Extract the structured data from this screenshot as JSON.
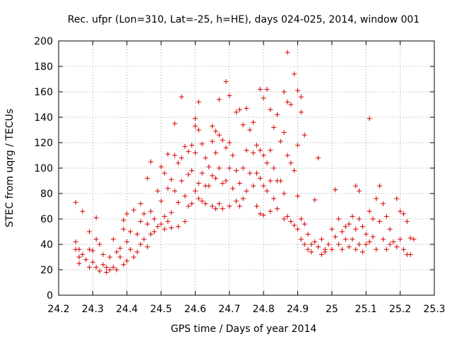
{
  "chart_data": {
    "type": "scatter",
    "title": "Rec. ufpr (Lon=310, Lat=-25, h=HE), days 024-025, 2014, window 001",
    "xlabel": "GPS time / Days of year 2014",
    "ylabel": "STEC from uqrg / TECUs",
    "xlim": [
      24.2,
      25.3
    ],
    "ylim": [
      0,
      200
    ],
    "xticks": [
      "24.2",
      "24.3",
      "24.4",
      "24.5",
      "24.6",
      "24.7",
      "24.8",
      "24.9",
      "25",
      "25.1",
      "25.2",
      "25.3"
    ],
    "yticks": [
      "0",
      "20",
      "40",
      "60",
      "80",
      "100",
      "120",
      "140",
      "160",
      "180",
      "200"
    ],
    "grid": true,
    "marker": "plus",
    "color": "#d40000",
    "series": [
      {
        "points": [
          [
            24.25,
            73
          ],
          [
            24.25,
            42
          ],
          [
            24.25,
            36
          ],
          [
            24.26,
            36
          ],
          [
            24.26,
            30
          ],
          [
            24.26,
            25
          ],
          [
            24.27,
            66
          ],
          [
            24.27,
            32
          ],
          [
            24.28,
            28
          ],
          [
            24.29,
            50
          ],
          [
            24.29,
            36
          ],
          [
            24.29,
            22
          ],
          [
            24.3,
            35
          ],
          [
            24.3,
            26
          ],
          [
            24.31,
            61
          ],
          [
            24.31,
            44
          ],
          [
            24.31,
            22
          ],
          [
            24.32,
            40
          ],
          [
            24.32,
            19
          ],
          [
            24.33,
            32
          ],
          [
            24.33,
            24
          ],
          [
            24.34,
            22
          ],
          [
            24.34,
            18
          ],
          [
            24.35,
            30
          ],
          [
            24.35,
            20
          ],
          [
            24.36,
            44
          ],
          [
            24.36,
            22
          ],
          [
            24.37,
            34
          ],
          [
            24.37,
            20
          ],
          [
            24.38,
            37
          ],
          [
            24.38,
            30
          ],
          [
            24.39,
            52
          ],
          [
            24.39,
            24
          ],
          [
            24.39,
            59
          ],
          [
            24.4,
            64
          ],
          [
            24.4,
            42
          ],
          [
            24.4,
            27
          ],
          [
            24.41,
            50
          ],
          [
            24.41,
            36
          ],
          [
            24.42,
            67
          ],
          [
            24.42,
            30
          ],
          [
            24.43,
            48
          ],
          [
            24.43,
            34
          ],
          [
            24.44,
            72
          ],
          [
            24.44,
            58
          ],
          [
            24.44,
            40
          ],
          [
            24.45,
            64
          ],
          [
            24.45,
            44
          ],
          [
            24.46,
            92
          ],
          [
            24.46,
            56
          ],
          [
            24.46,
            38
          ],
          [
            24.47,
            105
          ],
          [
            24.47,
            66
          ],
          [
            24.47,
            48
          ],
          [
            24.48,
            60
          ],
          [
            24.48,
            50
          ],
          [
            24.49,
            82
          ],
          [
            24.49,
            54
          ],
          [
            24.5,
            101
          ],
          [
            24.5,
            74
          ],
          [
            24.5,
            56
          ],
          [
            24.51,
            96
          ],
          [
            24.51,
            62
          ],
          [
            24.51,
            52
          ],
          [
            24.52,
            111
          ],
          [
            24.52,
            84
          ],
          [
            24.52,
            58
          ],
          [
            24.53,
            91
          ],
          [
            24.53,
            65
          ],
          [
            24.53,
            53
          ],
          [
            24.54,
            135
          ],
          [
            24.54,
            110
          ],
          [
            24.54,
            82
          ],
          [
            24.55,
            104
          ],
          [
            24.55,
            73
          ],
          [
            24.55,
            54
          ],
          [
            24.56,
            156
          ],
          [
            24.56,
            108
          ],
          [
            24.56,
            90
          ],
          [
            24.57,
            117
          ],
          [
            24.57,
            78
          ],
          [
            24.57,
            58
          ],
          [
            24.58,
            113
          ],
          [
            24.58,
            95
          ],
          [
            24.58,
            70
          ],
          [
            24.59,
            118
          ],
          [
            24.59,
            98
          ],
          [
            24.59,
            72
          ],
          [
            24.6,
            139
          ],
          [
            24.6,
            133
          ],
          [
            24.6,
            112
          ],
          [
            24.6,
            82
          ],
          [
            24.61,
            152
          ],
          [
            24.61,
            130
          ],
          [
            24.61,
            88
          ],
          [
            24.61,
            76
          ],
          [
            24.62,
            119
          ],
          [
            24.62,
            96
          ],
          [
            24.62,
            74
          ],
          [
            24.63,
            108
          ],
          [
            24.63,
            86
          ],
          [
            24.63,
            72
          ],
          [
            24.64,
            101
          ],
          [
            24.64,
            86
          ],
          [
            24.65,
            133
          ],
          [
            24.65,
            121
          ],
          [
            24.65,
            94
          ],
          [
            24.65,
            70
          ],
          [
            24.66,
            129
          ],
          [
            24.66,
            112
          ],
          [
            24.66,
            92
          ],
          [
            24.66,
            68
          ],
          [
            24.67,
            154
          ],
          [
            24.67,
            126
          ],
          [
            24.67,
            100
          ],
          [
            24.67,
            72
          ],
          [
            24.68,
            122
          ],
          [
            24.68,
            88
          ],
          [
            24.68,
            68
          ],
          [
            24.69,
            168
          ],
          [
            24.69,
            116
          ],
          [
            24.69,
            90
          ],
          [
            24.7,
            157
          ],
          [
            24.7,
            120
          ],
          [
            24.7,
            100
          ],
          [
            24.7,
            70
          ],
          [
            24.71,
            110
          ],
          [
            24.71,
            84
          ],
          [
            24.72,
            144
          ],
          [
            24.72,
            98
          ],
          [
            24.72,
            74
          ],
          [
            24.73,
            146
          ],
          [
            24.73,
            88
          ],
          [
            24.73,
            70
          ],
          [
            24.74,
            134
          ],
          [
            24.74,
            100
          ],
          [
            24.74,
            76
          ],
          [
            24.75,
            147
          ],
          [
            24.75,
            114
          ],
          [
            24.75,
            82
          ],
          [
            24.76,
            130
          ],
          [
            24.76,
            96
          ],
          [
            24.77,
            136
          ],
          [
            24.77,
            112
          ],
          [
            24.77,
            86
          ],
          [
            24.78,
            118
          ],
          [
            24.78,
            96
          ],
          [
            24.78,
            70
          ],
          [
            24.79,
            162
          ],
          [
            24.79,
            114
          ],
          [
            24.79,
            92
          ],
          [
            24.79,
            64
          ],
          [
            24.8,
            155
          ],
          [
            24.8,
            110
          ],
          [
            24.8,
            86
          ],
          [
            24.8,
            63
          ],
          [
            24.81,
            162
          ],
          [
            24.81,
            104
          ],
          [
            24.81,
            82
          ],
          [
            24.82,
            146
          ],
          [
            24.82,
            114
          ],
          [
            24.82,
            90
          ],
          [
            24.82,
            66
          ],
          [
            24.83,
            132
          ],
          [
            24.83,
            100
          ],
          [
            24.83,
            76
          ],
          [
            24.84,
            142
          ],
          [
            24.84,
            90
          ],
          [
            24.84,
            68
          ],
          [
            24.85,
            121
          ],
          [
            24.85,
            90
          ],
          [
            24.86,
            160
          ],
          [
            24.86,
            128
          ],
          [
            24.86,
            80
          ],
          [
            24.86,
            60
          ],
          [
            24.87,
            191
          ],
          [
            24.87,
            152
          ],
          [
            24.87,
            110
          ],
          [
            24.87,
            62
          ],
          [
            24.88,
            150
          ],
          [
            24.88,
            104
          ],
          [
            24.88,
            58
          ],
          [
            24.89,
            174
          ],
          [
            24.89,
            98
          ],
          [
            24.89,
            55
          ],
          [
            24.9,
            161
          ],
          [
            24.9,
            118
          ],
          [
            24.9,
            78
          ],
          [
            24.9,
            52
          ],
          [
            24.91,
            156
          ],
          [
            24.91,
            144
          ],
          [
            24.91,
            60
          ],
          [
            24.91,
            44
          ],
          [
            24.92,
            126
          ],
          [
            24.92,
            56
          ],
          [
            24.92,
            40
          ],
          [
            24.93,
            48
          ],
          [
            24.93,
            36
          ],
          [
            24.94,
            40
          ],
          [
            24.94,
            34
          ],
          [
            24.95,
            75
          ],
          [
            24.95,
            42
          ],
          [
            24.96,
            108
          ],
          [
            24.96,
            38
          ],
          [
            24.97,
            44
          ],
          [
            24.97,
            32
          ],
          [
            24.98,
            36
          ],
          [
            24.98,
            34
          ],
          [
            24.99,
            40
          ],
          [
            25.0,
            52
          ],
          [
            25.0,
            36
          ],
          [
            25.01,
            83
          ],
          [
            25.01,
            46
          ],
          [
            25.02,
            60
          ],
          [
            25.02,
            40
          ],
          [
            25.03,
            50
          ],
          [
            25.03,
            36
          ],
          [
            25.04,
            54
          ],
          [
            25.04,
            44
          ],
          [
            25.05,
            56
          ],
          [
            25.05,
            38
          ],
          [
            25.06,
            62
          ],
          [
            25.06,
            44
          ],
          [
            25.07,
            86
          ],
          [
            25.07,
            52
          ],
          [
            25.07,
            36
          ],
          [
            25.08,
            82
          ],
          [
            25.08,
            60
          ],
          [
            25.08,
            40
          ],
          [
            25.09,
            54
          ],
          [
            25.09,
            34
          ],
          [
            25.1,
            48
          ],
          [
            25.1,
            40
          ],
          [
            25.11,
            139
          ],
          [
            25.11,
            66
          ],
          [
            25.11,
            42
          ],
          [
            25.12,
            60
          ],
          [
            25.12,
            46
          ],
          [
            25.13,
            76
          ],
          [
            25.13,
            36
          ],
          [
            25.14,
            86
          ],
          [
            25.14,
            58
          ],
          [
            25.15,
            72
          ],
          [
            25.15,
            44
          ],
          [
            25.16,
            62
          ],
          [
            25.16,
            36
          ],
          [
            25.17,
            52
          ],
          [
            25.17,
            40
          ],
          [
            25.18,
            42
          ],
          [
            25.19,
            76
          ],
          [
            25.19,
            38
          ],
          [
            25.2,
            66
          ],
          [
            25.2,
            44
          ],
          [
            25.21,
            64
          ],
          [
            25.21,
            36
          ],
          [
            25.22,
            58
          ],
          [
            25.22,
            32
          ],
          [
            25.23,
            45
          ],
          [
            25.23,
            32
          ],
          [
            25.24,
            44
          ]
        ]
      }
    ]
  }
}
